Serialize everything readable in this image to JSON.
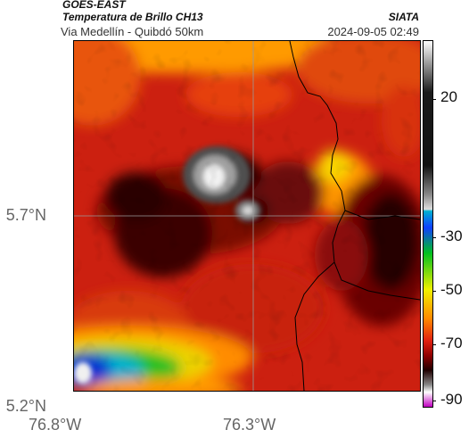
{
  "header": {
    "source": "GOES-EAST",
    "product": "Temperatura de Brillo CH13",
    "region": "Via Medellín - Quibdó 50km",
    "organization": "SIATA",
    "datetime": "2024-09-05 02:49"
  },
  "axes": {
    "y_ticks": [
      "5.7°N",
      "5.2°N"
    ],
    "x_ticks": [
      "76.8°W",
      "76.3°W"
    ]
  },
  "colorbar": {
    "ticks": [
      "20",
      "-30",
      "-50",
      "-70",
      "-90"
    ],
    "colors": [
      "#ffffff",
      "#1a1a1a",
      "#111111",
      "#888888",
      "#dddddd",
      "#00b0d0",
      "#1040ff",
      "#00c020",
      "#f0f000",
      "#ff8800",
      "#e02010",
      "#900000",
      "#200000",
      "#888888",
      "#ffffff",
      "#c000c0"
    ]
  }
}
